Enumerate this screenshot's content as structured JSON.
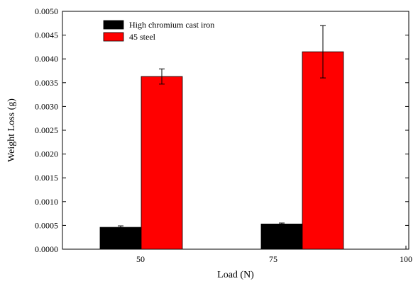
{
  "chart_data": {
    "type": "bar",
    "title": "",
    "xlabel": "Load (N)",
    "ylabel": "Weight Loss (g)",
    "categories": [
      "50",
      "75"
    ],
    "x_ticks": [
      "50",
      "75",
      "100"
    ],
    "y_ticks": [
      "0.0000",
      "0.0005",
      "0.0010",
      "0.0015",
      "0.0020",
      "0.0025",
      "0.0030",
      "0.0035",
      "0.0040",
      "0.0045",
      "0.0050"
    ],
    "ylim": [
      0,
      0.005
    ],
    "legend_position": "top-left",
    "grid": false,
    "series": [
      {
        "name": "High chromium cast iron",
        "color": "#000000",
        "values": [
          0.00046,
          0.00053
        ],
        "errors": [
          3e-05,
          2e-05
        ]
      },
      {
        "name": "45 steel",
        "color": "#ff0000",
        "values": [
          0.00363,
          0.00415
        ],
        "errors": [
          0.00016,
          0.00055
        ]
      }
    ]
  }
}
